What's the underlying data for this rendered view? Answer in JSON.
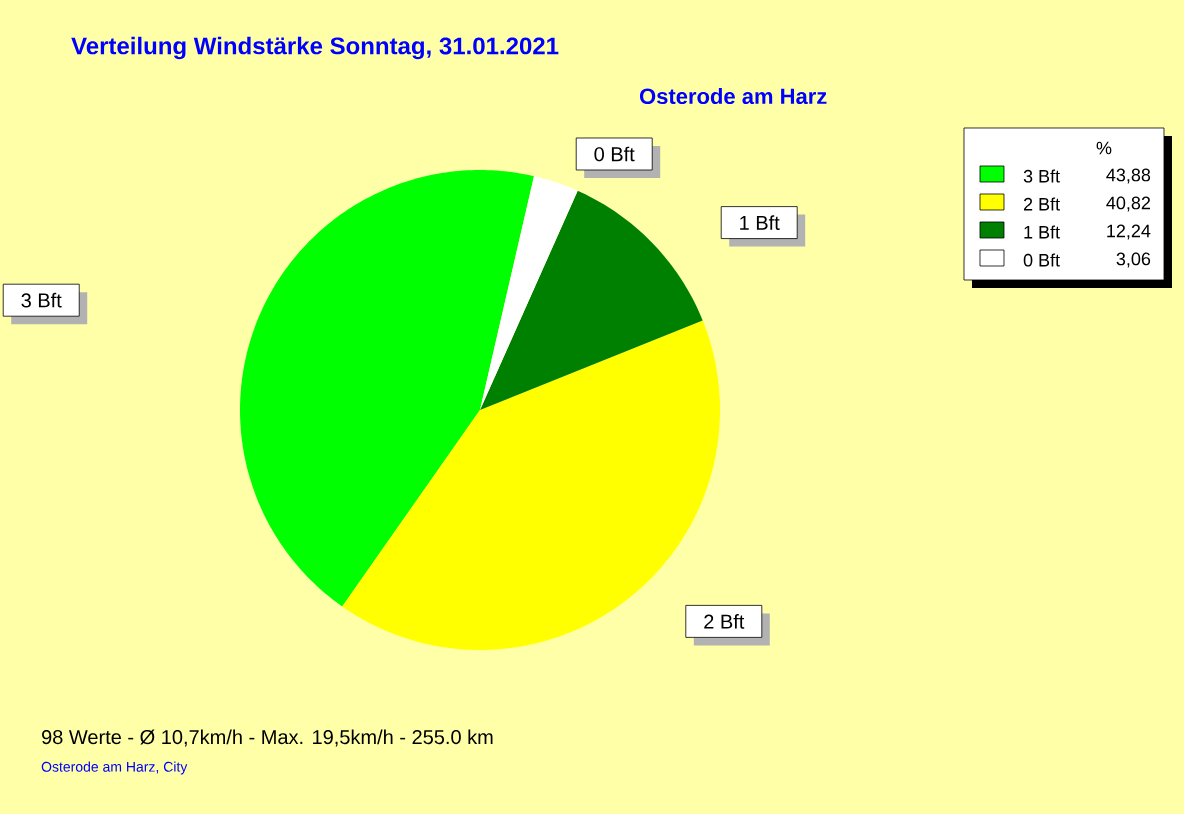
{
  "chart_data": {
    "type": "pie",
    "title": "Verteilung Windstärke  Sonntag, 31.01.2021",
    "subtitle": "Osterode am Harz",
    "categories": [
      "3 Bft",
      "2 Bft",
      "1 Bft",
      "0 Bft"
    ],
    "values": [
      43.88,
      40.82,
      12.24,
      3.06
    ],
    "colors": [
      "#00ff00",
      "#ffff00",
      "#008000",
      "#ffffff"
    ],
    "value_labels": [
      "43,88",
      "40,82",
      "12,24",
      "3,06"
    ],
    "legend_title": "%",
    "legend": "top right",
    "annotations": [
      "98 Werte   -   Ø 10,7km/h  -  Max. 19,5km/h   -   255.0 km",
      "Osterode am Harz, City"
    ]
  }
}
